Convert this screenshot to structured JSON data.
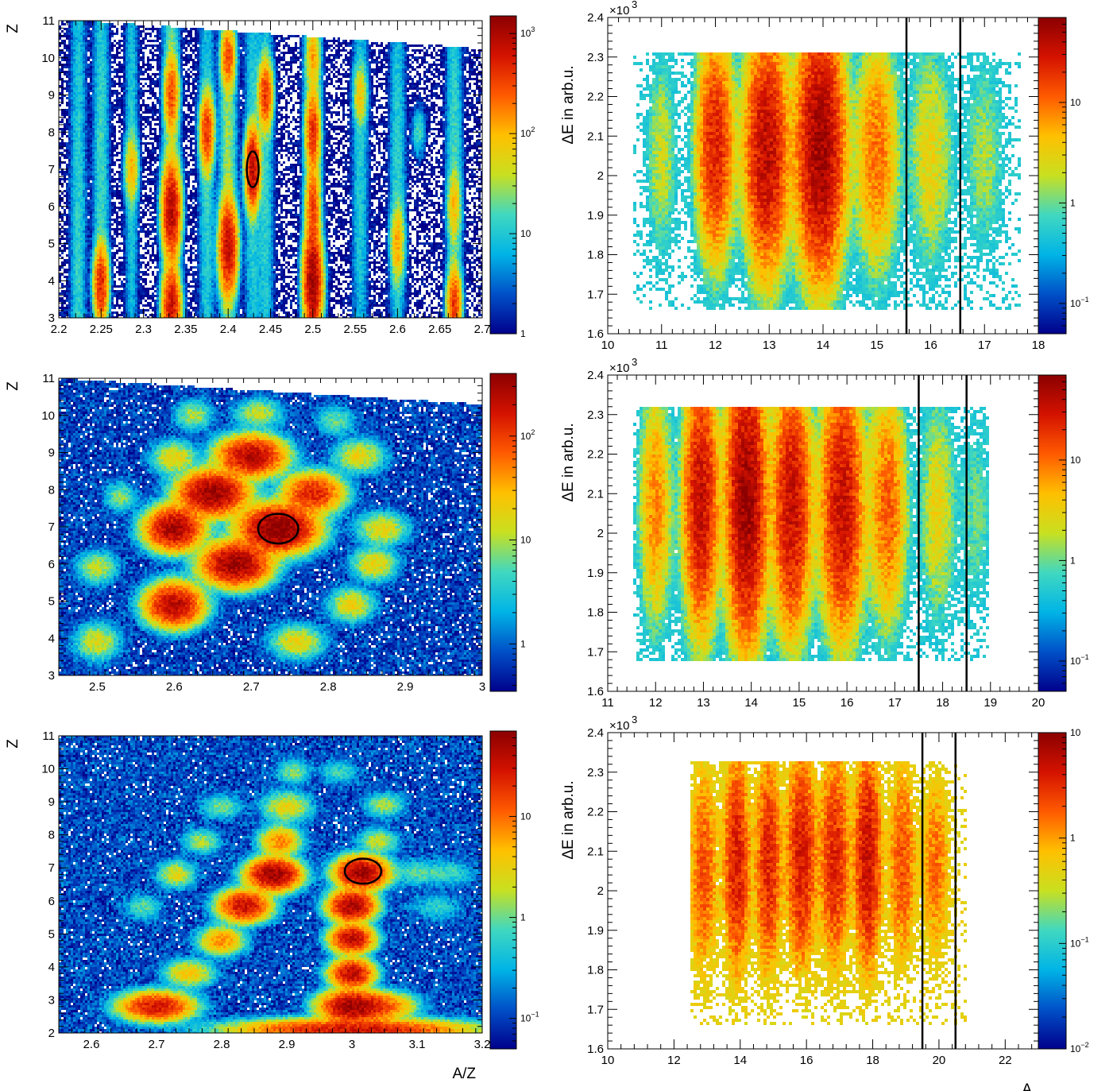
{
  "colormap": [
    "#00008b",
    "#0050c8",
    "#00b4e6",
    "#40d8c0",
    "#c8e020",
    "#ffc000",
    "#ff5a00",
    "#d41200",
    "#8b0000"
  ],
  "fontsizes_note": "",
  "labels": {
    "z_axis": "Z",
    "az_axis": "A/Z",
    "de_axis": "ΔE in arb.u.",
    "a_axis": "A",
    "de_multiplier_base": "×10",
    "de_multiplier_exp": "3"
  },
  "chart_data": [
    {
      "type": "heatmap",
      "panel": "top-left",
      "xlabel": "",
      "ylabel": "Z",
      "xlim": [
        2.2,
        2.7
      ],
      "ylim": [
        3,
        11
      ],
      "x_ticks": [
        "2.2",
        "2.25",
        "2.3",
        "2.35",
        "2.4",
        "2.45",
        "2.5",
        "2.55",
        "2.6",
        "2.65",
        "2.7"
      ],
      "y_ticks": [
        "3",
        "4",
        "5",
        "6",
        "7",
        "8",
        "9",
        "10",
        "11"
      ],
      "colorbar": {
        "scale": "log",
        "range": [
          1,
          1500
        ],
        "ticks": [
          {
            "v": 1,
            "b": "1"
          },
          {
            "v": 10,
            "b": "10"
          },
          {
            "v": 100,
            "b": "10",
            "e": "2"
          },
          {
            "v": 1000,
            "b": "10",
            "e": "3"
          }
        ]
      },
      "background": {
        "level": 1.1,
        "top_edge": [
          [
            2.2,
            11.05
          ],
          [
            2.7,
            10.25
          ]
        ]
      },
      "blobs": [
        {
          "x": 2.223,
          "y": 3.5,
          "sx": 0.005,
          "sy": 7.0,
          "v": 12
        },
        {
          "x": 2.25,
          "y": 3.9,
          "sx": 0.004,
          "sy": 0.5,
          "v": 500
        },
        {
          "x": 2.25,
          "y": 7.0,
          "sx": 0.005,
          "sy": 4.0,
          "v": 14
        },
        {
          "x": 2.286,
          "y": 7.0,
          "sx": 0.004,
          "sy": 0.45,
          "v": 100
        },
        {
          "x": 2.286,
          "y": 7.5,
          "sx": 0.004,
          "sy": 4.0,
          "v": 10
        },
        {
          "x": 2.333,
          "y": 5.9,
          "sx": 0.005,
          "sy": 0.6,
          "v": 900
        },
        {
          "x": 2.333,
          "y": 3.3,
          "sx": 0.005,
          "sy": 0.5,
          "v": 700
        },
        {
          "x": 2.333,
          "y": 9.0,
          "sx": 0.004,
          "sy": 0.5,
          "v": 300
        },
        {
          "x": 2.333,
          "y": 7.2,
          "sx": 0.005,
          "sy": 4.2,
          "v": 25
        },
        {
          "x": 2.375,
          "y": 8.0,
          "sx": 0.004,
          "sy": 0.5,
          "v": 400
        },
        {
          "x": 2.375,
          "y": 6.5,
          "sx": 0.005,
          "sy": 4.0,
          "v": 12
        },
        {
          "x": 2.4,
          "y": 4.9,
          "sx": 0.005,
          "sy": 0.6,
          "v": 800
        },
        {
          "x": 2.4,
          "y": 10.0,
          "sx": 0.004,
          "sy": 0.4,
          "v": 300
        },
        {
          "x": 2.4,
          "y": 7.0,
          "sx": 0.005,
          "sy": 4.0,
          "v": 30
        },
        {
          "x": 2.429,
          "y": 7.0,
          "sx": 0.004,
          "sy": 0.5,
          "v": 900
        },
        {
          "x": 2.429,
          "y": 7.0,
          "sx": 0.005,
          "sy": 4.0,
          "v": 12
        },
        {
          "x": 2.444,
          "y": 9.0,
          "sx": 0.004,
          "sy": 0.45,
          "v": 400
        },
        {
          "x": 2.444,
          "y": 6.5,
          "sx": 0.005,
          "sy": 4.0,
          "v": 12
        },
        {
          "x": 2.5,
          "y": 4.0,
          "sx": 0.005,
          "sy": 0.65,
          "v": 1200
        },
        {
          "x": 2.5,
          "y": 6.0,
          "sx": 0.004,
          "sy": 0.5,
          "v": 300
        },
        {
          "x": 2.5,
          "y": 8.0,
          "sx": 0.004,
          "sy": 0.5,
          "v": 400
        },
        {
          "x": 2.5,
          "y": 10.0,
          "sx": 0.004,
          "sy": 0.4,
          "v": 100
        },
        {
          "x": 2.5,
          "y": 7.0,
          "sx": 0.005,
          "sy": 4.2,
          "v": 40
        },
        {
          "x": 2.556,
          "y": 9.0,
          "sx": 0.004,
          "sy": 0.4,
          "v": 80
        },
        {
          "x": 2.556,
          "y": 7.0,
          "sx": 0.005,
          "sy": 4.0,
          "v": 10
        },
        {
          "x": 2.6,
          "y": 5.0,
          "sx": 0.004,
          "sy": 0.5,
          "v": 120
        },
        {
          "x": 2.6,
          "y": 6.5,
          "sx": 0.005,
          "sy": 4.0,
          "v": 12
        },
        {
          "x": 2.625,
          "y": 8.0,
          "sx": 0.004,
          "sy": 0.35,
          "v": 15
        },
        {
          "x": 2.667,
          "y": 3.3,
          "sx": 0.004,
          "sy": 0.5,
          "v": 400
        },
        {
          "x": 2.667,
          "y": 6.0,
          "sx": 0.004,
          "sy": 0.5,
          "v": 80
        },
        {
          "x": 2.667,
          "y": 6.5,
          "sx": 0.005,
          "sy": 4.0,
          "v": 15
        }
      ],
      "ellipse": {
        "cx": 2.429,
        "cy": 7.0,
        "rx": 0.007,
        "ry": 0.48
      }
    },
    {
      "type": "heatmap",
      "panel": "middle-left",
      "xlabel": "",
      "ylabel": "Z",
      "xlim": [
        2.45,
        3.0
      ],
      "ylim": [
        3,
        11
      ],
      "x_ticks": [
        "2.5",
        "2.6",
        "2.7",
        "2.8",
        "2.9",
        "3"
      ],
      "y_ticks": [
        "3",
        "4",
        "5",
        "6",
        "7",
        "8",
        "9",
        "10",
        "11"
      ],
      "colorbar": {
        "scale": "log",
        "range": [
          0.35,
          400
        ],
        "ticks": [
          {
            "v": 1,
            "b": "1"
          },
          {
            "v": 10,
            "b": "10"
          },
          {
            "v": 100,
            "b": "10",
            "e": "2"
          }
        ]
      },
      "background": {
        "level": 0.9,
        "top_edge": [
          [
            2.45,
            11.0
          ],
          [
            3.0,
            10.3
          ]
        ]
      },
      "blobs": [
        {
          "x": 2.5,
          "y": 3.9,
          "sx": 0.014,
          "sy": 0.25,
          "v": 15
        },
        {
          "x": 2.5,
          "y": 5.9,
          "sx": 0.013,
          "sy": 0.22,
          "v": 12
        },
        {
          "x": 2.53,
          "y": 7.8,
          "sx": 0.01,
          "sy": 0.2,
          "v": 8
        },
        {
          "x": 2.6,
          "y": 4.9,
          "sx": 0.017,
          "sy": 0.27,
          "v": 250
        },
        {
          "x": 2.6,
          "y": 6.95,
          "sx": 0.017,
          "sy": 0.27,
          "v": 300
        },
        {
          "x": 2.6,
          "y": 8.85,
          "sx": 0.014,
          "sy": 0.22,
          "v": 20
        },
        {
          "x": 2.625,
          "y": 10.0,
          "sx": 0.012,
          "sy": 0.2,
          "v": 10
        },
        {
          "x": 2.65,
          "y": 7.9,
          "sx": 0.02,
          "sy": 0.27,
          "v": 350
        },
        {
          "x": 2.68,
          "y": 6.0,
          "sx": 0.02,
          "sy": 0.27,
          "v": 350
        },
        {
          "x": 2.7,
          "y": 8.9,
          "sx": 0.02,
          "sy": 0.25,
          "v": 250
        },
        {
          "x": 2.71,
          "y": 10.05,
          "sx": 0.015,
          "sy": 0.2,
          "v": 12
        },
        {
          "x": 2.735,
          "y": 6.95,
          "sx": 0.022,
          "sy": 0.28,
          "v": 450
        },
        {
          "x": 2.76,
          "y": 3.9,
          "sx": 0.017,
          "sy": 0.22,
          "v": 18
        },
        {
          "x": 2.78,
          "y": 7.9,
          "sx": 0.018,
          "sy": 0.25,
          "v": 150
        },
        {
          "x": 2.81,
          "y": 9.85,
          "sx": 0.013,
          "sy": 0.2,
          "v": 6
        },
        {
          "x": 2.83,
          "y": 4.9,
          "sx": 0.014,
          "sy": 0.22,
          "v": 20
        },
        {
          "x": 2.84,
          "y": 8.9,
          "sx": 0.016,
          "sy": 0.22,
          "v": 18
        },
        {
          "x": 2.86,
          "y": 6.0,
          "sx": 0.014,
          "sy": 0.22,
          "v": 20
        },
        {
          "x": 2.87,
          "y": 6.95,
          "sx": 0.016,
          "sy": 0.22,
          "v": 18
        }
      ],
      "ellipse": {
        "cx": 2.735,
        "cy": 6.95,
        "rx": 0.026,
        "ry": 0.4
      }
    },
    {
      "type": "heatmap",
      "panel": "bottom-left",
      "xlabel": "A/Z",
      "ylabel": "Z",
      "xlim": [
        2.55,
        3.2
      ],
      "ylim": [
        2,
        11
      ],
      "x_ticks": [
        "2.6",
        "2.7",
        "2.8",
        "2.9",
        "3",
        "3.1",
        "3.2"
      ],
      "y_ticks": [
        "2",
        "3",
        "4",
        "5",
        "6",
        "7",
        "8",
        "9",
        "10",
        "11"
      ],
      "colorbar": {
        "scale": "log",
        "range": [
          0.05,
          70
        ],
        "ticks": [
          {
            "v": 0.1,
            "b": "10",
            "e": "−1"
          },
          {
            "v": 1,
            "b": "1"
          },
          {
            "v": 10,
            "b": "10"
          }
        ]
      },
      "background": {
        "level": 0.15,
        "top_edge": [
          [
            2.55,
            11.0
          ],
          [
            3.2,
            11.0
          ]
        ]
      },
      "blobs": [
        {
          "x": 2.7,
          "y": 2.8,
          "sx": 0.025,
          "sy": 0.2,
          "v": 30
        },
        {
          "x": 2.75,
          "y": 3.8,
          "sx": 0.018,
          "sy": 0.2,
          "v": 4
        },
        {
          "x": 2.8,
          "y": 4.8,
          "sx": 0.016,
          "sy": 0.2,
          "v": 8
        },
        {
          "x": 2.835,
          "y": 5.85,
          "sx": 0.018,
          "sy": 0.22,
          "v": 35
        },
        {
          "x": 2.88,
          "y": 6.8,
          "sx": 0.018,
          "sy": 0.22,
          "v": 60
        },
        {
          "x": 2.89,
          "y": 7.8,
          "sx": 0.015,
          "sy": 0.22,
          "v": 8
        },
        {
          "x": 2.9,
          "y": 8.85,
          "sx": 0.018,
          "sy": 0.22,
          "v": 3
        },
        {
          "x": 2.91,
          "y": 9.9,
          "sx": 0.013,
          "sy": 0.18,
          "v": 1.2
        },
        {
          "x": 2.73,
          "y": 6.8,
          "sx": 0.014,
          "sy": 0.2,
          "v": 2.5
        },
        {
          "x": 2.77,
          "y": 7.8,
          "sx": 0.014,
          "sy": 0.18,
          "v": 1.5
        },
        {
          "x": 2.8,
          "y": 8.85,
          "sx": 0.016,
          "sy": 0.18,
          "v": 1.0
        },
        {
          "x": 2.68,
          "y": 5.8,
          "sx": 0.014,
          "sy": 0.2,
          "v": 0.8
        },
        {
          "x": 3.0,
          "y": 2.8,
          "sx": 0.022,
          "sy": 0.22,
          "v": 55
        },
        {
          "x": 3.0,
          "y": 3.8,
          "sx": 0.015,
          "sy": 0.2,
          "v": 40
        },
        {
          "x": 3.0,
          "y": 4.85,
          "sx": 0.015,
          "sy": 0.2,
          "v": 40
        },
        {
          "x": 3.0,
          "y": 5.85,
          "sx": 0.016,
          "sy": 0.22,
          "v": 50
        },
        {
          "x": 3.015,
          "y": 6.85,
          "sx": 0.018,
          "sy": 0.22,
          "v": 55
        },
        {
          "x": 3.0,
          "y": 2.1,
          "sx": 0.08,
          "sy": 0.15,
          "v": 30
        },
        {
          "x": 3.04,
          "y": 2.8,
          "sx": 0.025,
          "sy": 0.2,
          "v": 15
        },
        {
          "x": 3.04,
          "y": 7.8,
          "sx": 0.015,
          "sy": 0.18,
          "v": 2
        },
        {
          "x": 3.05,
          "y": 8.9,
          "sx": 0.015,
          "sy": 0.18,
          "v": 1.5
        },
        {
          "x": 3.1,
          "y": 6.85,
          "sx": 0.02,
          "sy": 0.2,
          "v": 0.8
        },
        {
          "x": 3.15,
          "y": 6.85,
          "sx": 0.02,
          "sy": 0.2,
          "v": 0.6
        },
        {
          "x": 3.13,
          "y": 5.8,
          "sx": 0.02,
          "sy": 0.2,
          "v": 0.5
        },
        {
          "x": 2.98,
          "y": 9.9,
          "sx": 0.015,
          "sy": 0.18,
          "v": 0.6
        }
      ],
      "ellipse": {
        "cx": 3.017,
        "cy": 6.9,
        "rx": 0.028,
        "ry": 0.38
      }
    },
    {
      "type": "heatmap",
      "panel": "top-right",
      "xlabel": "",
      "ylabel": "ΔE in arb.u.",
      "xlim": [
        10,
        18
      ],
      "ylim": [
        1.6,
        2.4
      ],
      "x_ticks": [
        "10",
        "11",
        "12",
        "13",
        "14",
        "15",
        "16",
        "17",
        "18"
      ],
      "y_ticks": [
        "1.6",
        "1.7",
        "1.8",
        "1.9",
        "2",
        "2.1",
        "2.2",
        "2.3",
        "2.4"
      ],
      "colorbar": {
        "scale": "log",
        "range": [
          0.05,
          70
        ],
        "ticks": [
          {
            "v": 0.1,
            "b": "10",
            "e": "−1"
          },
          {
            "v": 1,
            "b": "1"
          },
          {
            "v": 10,
            "b": "10"
          }
        ]
      },
      "region": {
        "x": [
          10.5,
          17.7
        ],
        "y": [
          1.66,
          2.31
        ]
      },
      "blobs": [
        {
          "x": 11.0,
          "y": 2.05,
          "sx": 0.15,
          "sy": 0.14,
          "v": 2
        },
        {
          "x": 12.0,
          "y": 2.07,
          "sx": 0.17,
          "sy": 0.14,
          "v": 25
        },
        {
          "x": 12.95,
          "y": 2.06,
          "sx": 0.2,
          "sy": 0.15,
          "v": 40
        },
        {
          "x": 13.95,
          "y": 2.07,
          "sx": 0.22,
          "sy": 0.16,
          "v": 55
        },
        {
          "x": 15.0,
          "y": 2.06,
          "sx": 0.2,
          "sy": 0.15,
          "v": 10
        },
        {
          "x": 16.0,
          "y": 2.05,
          "sx": 0.22,
          "sy": 0.15,
          "v": 3
        },
        {
          "x": 17.0,
          "y": 2.05,
          "sx": 0.2,
          "sy": 0.14,
          "v": 1.5
        }
      ],
      "floor": 0.5,
      "cut_lines": [
        15.55,
        16.55
      ]
    },
    {
      "type": "heatmap",
      "panel": "middle-right",
      "xlabel": "",
      "ylabel": "ΔE in arb.u.",
      "xlim": [
        11,
        20
      ],
      "ylim": [
        1.6,
        2.4
      ],
      "x_ticks": [
        "11",
        "12",
        "13",
        "14",
        "15",
        "16",
        "17",
        "18",
        "19",
        "20"
      ],
      "y_ticks": [
        "1.6",
        "1.7",
        "1.8",
        "1.9",
        "2",
        "2.1",
        "2.2",
        "2.3",
        "2.4"
      ],
      "colorbar": {
        "scale": "log",
        "range": [
          0.05,
          70
        ],
        "ticks": [
          {
            "v": 0.1,
            "b": "10",
            "e": "−1"
          },
          {
            "v": 1,
            "b": "1"
          },
          {
            "v": 10,
            "b": "10"
          }
        ]
      },
      "region": {
        "x": [
          11.5,
          19.0
        ],
        "y": [
          1.68,
          2.32
        ]
      },
      "blobs": [
        {
          "x": 12.0,
          "y": 2.07,
          "sx": 0.17,
          "sy": 0.15,
          "v": 8
        },
        {
          "x": 12.95,
          "y": 2.08,
          "sx": 0.18,
          "sy": 0.16,
          "v": 35
        },
        {
          "x": 13.9,
          "y": 2.08,
          "sx": 0.2,
          "sy": 0.17,
          "v": 60
        },
        {
          "x": 14.85,
          "y": 2.07,
          "sx": 0.2,
          "sy": 0.16,
          "v": 35
        },
        {
          "x": 15.9,
          "y": 2.07,
          "sx": 0.22,
          "sy": 0.16,
          "v": 35
        },
        {
          "x": 16.85,
          "y": 2.07,
          "sx": 0.2,
          "sy": 0.15,
          "v": 12
        },
        {
          "x": 17.9,
          "y": 2.06,
          "sx": 0.2,
          "sy": 0.15,
          "v": 3
        },
        {
          "x": 18.7,
          "y": 2.05,
          "sx": 0.2,
          "sy": 0.14,
          "v": 1
        }
      ],
      "floor": 0.5,
      "cut_lines": [
        17.5,
        18.5
      ]
    },
    {
      "type": "heatmap",
      "panel": "bottom-right",
      "xlabel": "A",
      "ylabel": "ΔE in arb.u.",
      "xlim": [
        10,
        23
      ],
      "ylim": [
        1.6,
        2.4
      ],
      "x_ticks": [
        "10",
        "12",
        "14",
        "16",
        "18",
        "20",
        "22"
      ],
      "y_ticks": [
        "1.6",
        "1.7",
        "1.8",
        "1.9",
        "2",
        "2.1",
        "2.2",
        "2.3",
        "2.4"
      ],
      "colorbar": {
        "scale": "log",
        "range": [
          0.01,
          10
        ],
        "ticks": [
          {
            "v": 0.01,
            "b": "10",
            "e": "−2"
          },
          {
            "v": 0.1,
            "b": "10",
            "e": "−1"
          },
          {
            "v": 1,
            "b": "1"
          },
          {
            "v": 10,
            "b": "10"
          }
        ]
      },
      "region": {
        "x": [
          12.5,
          20.8
        ],
        "y": [
          1.66,
          2.33
        ]
      },
      "blobs": [
        {
          "x": 12.9,
          "y": 2.05,
          "sx": 0.25,
          "sy": 0.15,
          "v": 2
        },
        {
          "x": 13.9,
          "y": 2.07,
          "sx": 0.22,
          "sy": 0.15,
          "v": 4
        },
        {
          "x": 14.85,
          "y": 2.07,
          "sx": 0.22,
          "sy": 0.15,
          "v": 3.5
        },
        {
          "x": 15.85,
          "y": 2.08,
          "sx": 0.25,
          "sy": 0.15,
          "v": 4
        },
        {
          "x": 16.85,
          "y": 2.08,
          "sx": 0.25,
          "sy": 0.15,
          "v": 3.5
        },
        {
          "x": 17.85,
          "y": 2.08,
          "sx": 0.22,
          "sy": 0.15,
          "v": 5
        },
        {
          "x": 18.9,
          "y": 2.07,
          "sx": 0.25,
          "sy": 0.15,
          "v": 2
        },
        {
          "x": 19.9,
          "y": 2.06,
          "sx": 0.25,
          "sy": 0.14,
          "v": 1.5
        }
      ],
      "floor": 0.5,
      "cut_lines": [
        19.5,
        20.5
      ]
    }
  ]
}
